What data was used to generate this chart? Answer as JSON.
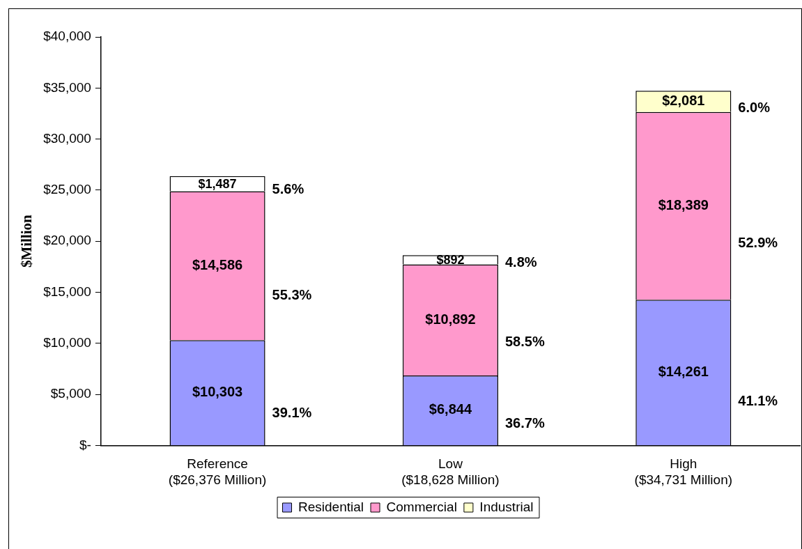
{
  "chart_data": {
    "type": "bar",
    "stacked": true,
    "ylabel": "$Million",
    "categories": [
      "Reference\n($26,376 Million)",
      "Low\n($18,628 Million)",
      "High\n($34,731 Million)"
    ],
    "series": [
      {
        "name": "Residential",
        "color": "#9999ff",
        "values": [
          10303,
          6844,
          14261
        ],
        "value_labels": [
          "$10,303",
          "$6,844",
          "$14,261"
        ]
      },
      {
        "name": "Commercial",
        "color": "#ff99cc",
        "values": [
          14586,
          10892,
          18389
        ],
        "value_labels": [
          "$14,586",
          "$10,892",
          "$18,389"
        ]
      },
      {
        "name": "Industrial",
        "color": "#ffffcc",
        "colors": [
          "#ffffff",
          "#ffffff",
          "#ffffcc"
        ],
        "values": [
          1487,
          892,
          2081
        ],
        "value_labels": [
          "$1,487",
          "$892",
          "$2,081"
        ]
      }
    ],
    "ylim": [
      0,
      40000
    ],
    "yticks": [
      {
        "value": 0,
        "label": "$-"
      },
      {
        "value": 5000,
        "label": "$5,000"
      },
      {
        "value": 10000,
        "label": "$10,000"
      },
      {
        "value": 15000,
        "label": "$15,000"
      },
      {
        "value": 20000,
        "label": "$20,000"
      },
      {
        "value": 25000,
        "label": "$25,000"
      },
      {
        "value": 30000,
        "label": "$30,000"
      },
      {
        "value": 35000,
        "label": "$35,000"
      },
      {
        "value": 40000,
        "label": "$40,000"
      }
    ],
    "annotations": [
      "39.1%",
      "55.3%",
      "5.6%",
      "36.7%",
      "58.5%",
      "4.8%",
      "41.1%",
      "52.9%",
      "6.0%"
    ],
    "grid": false,
    "legend": "bottom"
  }
}
